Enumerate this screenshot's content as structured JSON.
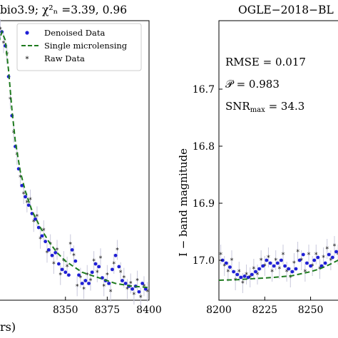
{
  "chart_data": [
    {
      "type": "scatter",
      "title": "bio3.9;   χ²ₙ =3.39,  0.96",
      "xlabel": "rs)",
      "ylabel": "",
      "xlim": [
        8310,
        8400
      ],
      "ylim": [
        0.0,
        1.0
      ],
      "y_inverted": false,
      "x_ticks": [
        8350,
        8375,
        8400
      ],
      "legend": {
        "placement": "top-right",
        "entries": [
          "Denoised Data",
          "Single microlensing",
          "Raw Data"
        ]
      },
      "colors": {
        "denoised": "#1f1fd6",
        "model": "#1e7a1e",
        "raw": "#ff33ff",
        "errorbar": "#c8c8dc"
      },
      "series": [
        {
          "name": "Denoised Data",
          "marker": "dot",
          "x": [
            8310,
            8312,
            8314,
            8316,
            8318,
            8320,
            8322,
            8324,
            8326,
            8328,
            8330,
            8332,
            8334,
            8336,
            8338,
            8340,
            8342,
            8344,
            8346,
            8348,
            8350,
            8352,
            8354,
            8356,
            8358,
            8360,
            8362,
            8364,
            8366,
            8368,
            8370,
            8372,
            8374,
            8376,
            8378,
            8380,
            8382,
            8384,
            8386,
            8388,
            8390,
            8392,
            8394,
            8396,
            8398
          ],
          "y": [
            0.94,
            0.96,
            0.91,
            0.8,
            0.66,
            0.55,
            0.47,
            0.41,
            0.37,
            0.34,
            0.31,
            0.29,
            0.26,
            0.23,
            0.21,
            0.18,
            0.16,
            0.17,
            0.13,
            0.11,
            0.1,
            0.09,
            0.18,
            0.14,
            0.09,
            0.06,
            0.07,
            0.06,
            0.1,
            0.13,
            0.12,
            0.08,
            0.07,
            0.06,
            0.11,
            0.16,
            0.12,
            0.07,
            0.06,
            0.05,
            0.04,
            0.05,
            0.03,
            0.06,
            0.04
          ]
        },
        {
          "name": "Single microlensing",
          "marker": "dashed-line",
          "x": [
            8310,
            8312,
            8314,
            8316,
            8318,
            8320,
            8323,
            8326,
            8330,
            8335,
            8340,
            8345,
            8350,
            8355,
            8360,
            8365,
            8370,
            8375,
            8380,
            8385,
            8390,
            8395,
            8400
          ],
          "y": [
            0.92,
            0.96,
            0.93,
            0.82,
            0.68,
            0.57,
            0.46,
            0.39,
            0.32,
            0.26,
            0.21,
            0.17,
            0.14,
            0.12,
            0.1,
            0.09,
            0.08,
            0.07,
            0.06,
            0.055,
            0.05,
            0.048,
            0.045
          ]
        },
        {
          "name": "Raw Data",
          "marker": "star",
          "x": [
            8311,
            8313,
            8315,
            8317,
            8319,
            8321,
            8323,
            8325,
            8327,
            8329,
            8331,
            8333,
            8335,
            8337,
            8339,
            8341,
            8343,
            8345,
            8347,
            8349,
            8351,
            8353,
            8355,
            8357,
            8359,
            8361,
            8363,
            8365,
            8367,
            8369,
            8371,
            8373,
            8375,
            8377,
            8379,
            8381,
            8383,
            8385,
            8387,
            8389,
            8391,
            8393,
            8395,
            8397,
            8399
          ],
          "y": [
            0.97,
            0.92,
            0.88,
            0.72,
            0.6,
            0.52,
            0.44,
            0.38,
            0.35,
            0.36,
            0.28,
            0.3,
            0.22,
            0.25,
            0.17,
            0.2,
            0.13,
            0.18,
            0.09,
            0.14,
            0.12,
            0.2,
            0.16,
            0.05,
            0.08,
            0.04,
            0.09,
            0.07,
            0.14,
            0.1,
            0.15,
            0.05,
            0.09,
            0.03,
            0.13,
            0.18,
            0.1,
            0.08,
            0.04,
            0.06,
            0.02,
            0.07,
            0.01,
            0.05,
            0.03
          ]
        }
      ]
    },
    {
      "type": "scatter",
      "title": "OGLE−2018−BL",
      "xlabel": "",
      "ylabel": "I − band magnitude",
      "xlim": [
        8200,
        8270
      ],
      "ylim": [
        16.58,
        17.07
      ],
      "y_inverted": true,
      "x_ticks": [
        8200,
        8225,
        8250
      ],
      "y_ticks": [
        16.7,
        16.8,
        16.9,
        17.0
      ],
      "annotations": [
        "RMSE =  0.017",
        "𝒫 =  0.983",
        "SNR",
        "max",
        " =  34.3"
      ],
      "colors": {
        "denoised": "#1f1fd6",
        "model": "#1e7a1e",
        "raw": "#ff33ff",
        "errorbar": "#c8c8dc"
      },
      "series": [
        {
          "name": "Denoised Data",
          "marker": "dot",
          "x": [
            8202,
            8204,
            8206,
            8208,
            8210,
            8212,
            8214,
            8216,
            8218,
            8220,
            8222,
            8224,
            8226,
            8228,
            8230,
            8232,
            8234,
            8236,
            8238,
            8240,
            8242,
            8244,
            8246,
            8248,
            8250,
            8252,
            8254,
            8256,
            8258,
            8260,
            8262,
            8264,
            8266,
            8268
          ],
          "y": [
            17.0,
            17.005,
            17.012,
            17.02,
            17.025,
            17.03,
            17.028,
            17.03,
            17.025,
            17.02,
            17.015,
            17.01,
            17.0,
            17.005,
            17.01,
            17.005,
            17.0,
            17.01,
            17.015,
            17.02,
            17.015,
            17.0,
            16.99,
            17.005,
            17.01,
            17.0,
            16.995,
            17.01,
            17.005,
            16.99,
            16.995,
            16.985,
            16.98,
            16.985
          ]
        },
        {
          "name": "Single microlensing",
          "marker": "dashed-line",
          "x": [
            8200,
            8210,
            8220,
            8230,
            8240,
            8250,
            8255,
            8260,
            8265,
            8270
          ],
          "y": [
            17.035,
            17.034,
            17.032,
            17.03,
            17.027,
            17.02,
            17.015,
            17.008,
            17.0,
            16.99
          ]
        },
        {
          "name": "Raw Data",
          "marker": "star",
          "x": [
            8201,
            8203,
            8205,
            8207,
            8209,
            8211,
            8213,
            8215,
            8217,
            8219,
            8221,
            8223,
            8225,
            8227,
            8229,
            8231,
            8233,
            8235,
            8237,
            8239,
            8241,
            8243,
            8245,
            8247,
            8249,
            8251,
            8253,
            8255,
            8257,
            8259,
            8261,
            8263,
            8265,
            8267,
            8269
          ],
          "y": [
            16.99,
            17.01,
            17.02,
            17.0,
            17.035,
            17.02,
            17.04,
            17.025,
            17.03,
            17.015,
            17.025,
            17.0,
            17.01,
            16.995,
            17.02,
            17.0,
            17.015,
            16.99,
            17.02,
            17.03,
            17.005,
            16.985,
            17.0,
            17.02,
            16.99,
            17.01,
            16.99,
            17.015,
            16.995,
            16.98,
            17.0,
            16.975,
            16.99,
            16.97,
            16.98
          ]
        }
      ]
    }
  ]
}
